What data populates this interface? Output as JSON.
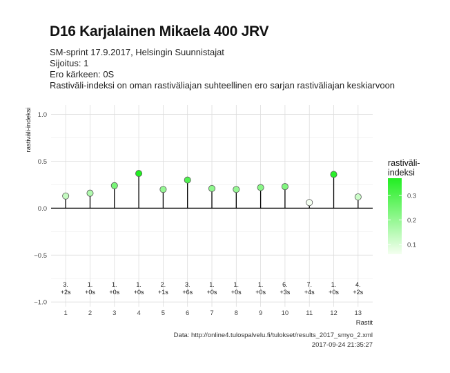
{
  "header": {
    "title": "D16 Karjalainen Mikaela 400 JRV",
    "subtitle_lines": [
      "SM-sprint 17.9.2017, Helsingin Suunnistajat",
      "Sijoitus: 1",
      "Ero kärkeen: 0S",
      "Rastiväli-indeksi on oman rastiväliajan suhteellinen ero sarjan rastiväliajan keskiarvoon"
    ]
  },
  "caption": {
    "source": "Data: http://online4.tulospalvelu.fi/tulokset/results_2017_smyo_2.xml",
    "timestamp": "2017-09-24 21:35:27"
  },
  "chart_data": {
    "type": "lollipop",
    "title": "D16 Karjalainen Mikaela 400 JRV",
    "xlabel": "Rastit",
    "ylabel": "rastiväli-indeksi",
    "x": [
      1,
      2,
      3,
      4,
      5,
      6,
      7,
      8,
      9,
      10,
      11,
      12,
      13
    ],
    "values": [
      0.13,
      0.16,
      0.24,
      0.37,
      0.2,
      0.3,
      0.21,
      0.2,
      0.22,
      0.23,
      0.06,
      0.36,
      0.12
    ],
    "point_labels_rank": [
      "3.",
      "1.",
      "1.",
      "1.",
      "2.",
      "3.",
      "1.",
      "1.",
      "1.",
      "6.",
      "7.",
      "1.",
      "4."
    ],
    "point_labels_diff": [
      "+2s",
      "+0s",
      "+0s",
      "+0s",
      "+1s",
      "+6s",
      "+0s",
      "+0s",
      "+0s",
      "+3s",
      "+4s",
      "+0s",
      "+2s"
    ],
    "ylim": [
      -1.05,
      1.1
    ],
    "yticks": [
      -1.0,
      -0.5,
      0.0,
      0.5,
      1.0
    ],
    "ytick_labels": [
      "−1.0",
      "−0.5",
      "0.0",
      "0.5",
      "1.0"
    ],
    "grid": true,
    "legend": {
      "title_lines": [
        "rastiväli-",
        "indeksi"
      ],
      "placement": "right",
      "range": [
        0.06,
        0.37
      ],
      "ticks": [
        0.1,
        0.2,
        0.3
      ],
      "tick_labels": [
        "0.1",
        "0.2",
        "0.3"
      ],
      "color_low": "#f4fff0",
      "color_high": "#22ee22"
    }
  }
}
